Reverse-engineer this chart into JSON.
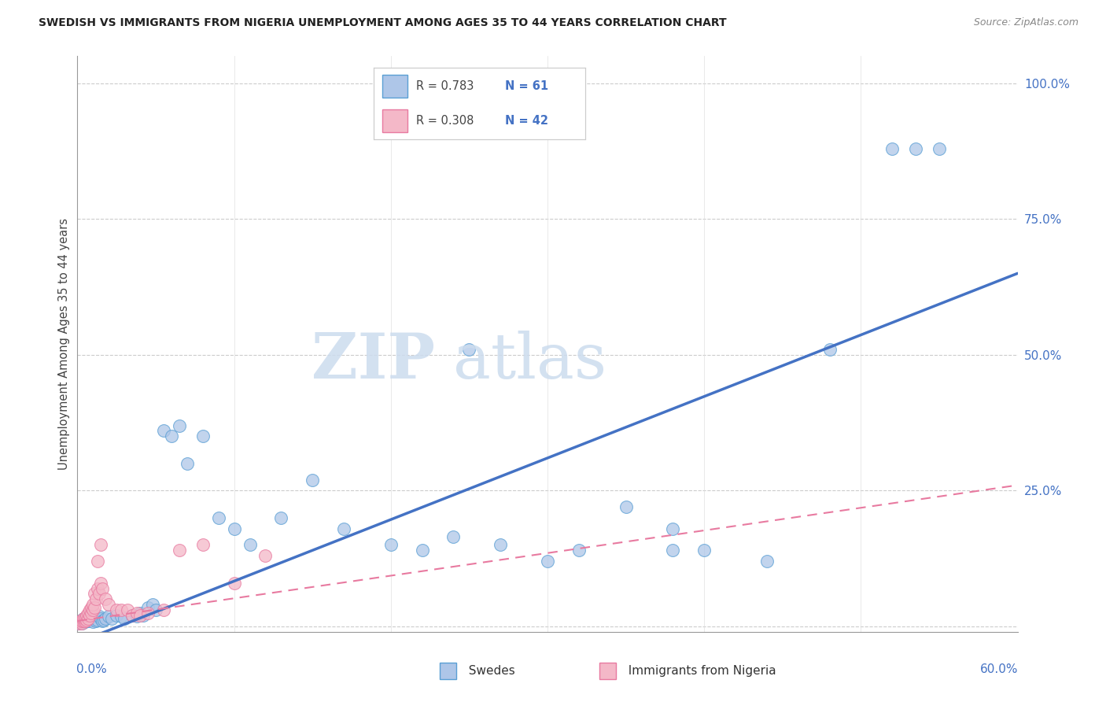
{
  "title": "SWEDISH VS IMMIGRANTS FROM NIGERIA UNEMPLOYMENT AMONG AGES 35 TO 44 YEARS CORRELATION CHART",
  "source": "Source: ZipAtlas.com",
  "ylabel": "Unemployment Among Ages 35 to 44 years",
  "legend_label_blue": "Swedes",
  "legend_label_pink": "Immigrants from Nigeria",
  "blue_fill": "#aec6e8",
  "pink_fill": "#f4b8c8",
  "blue_edge": "#5a9fd4",
  "pink_edge": "#e87aa0",
  "blue_line": "#4472c4",
  "pink_line": "#e87aa0",
  "grid_color": "#cccccc",
  "axis_color": "#999999",
  "tick_label_color": "#4472c4",
  "xlim": [
    0.0,
    0.6
  ],
  "ylim": [
    -0.01,
    1.05
  ],
  "yticks": [
    0.0,
    0.25,
    0.5,
    0.75,
    1.0
  ],
  "ytick_labels": [
    "",
    "25.0%",
    "50.0%",
    "75.0%",
    "100.0%"
  ],
  "blue_x": [
    0.001,
    0.002,
    0.002,
    0.003,
    0.003,
    0.004,
    0.004,
    0.005,
    0.005,
    0.006,
    0.007,
    0.008,
    0.009,
    0.01,
    0.011,
    0.012,
    0.013,
    0.014,
    0.015,
    0.016,
    0.017,
    0.018,
    0.02,
    0.022,
    0.025,
    0.028,
    0.03,
    0.035,
    0.038,
    0.04,
    0.042,
    0.045,
    0.048,
    0.05,
    0.055,
    0.06,
    0.065,
    0.07,
    0.08,
    0.09,
    0.1,
    0.11,
    0.13,
    0.15,
    0.17,
    0.2,
    0.22,
    0.24,
    0.25,
    0.27,
    0.3,
    0.32,
    0.35,
    0.38,
    0.4,
    0.44,
    0.48,
    0.52,
    0.535,
    0.55,
    0.38
  ],
  "blue_y": [
    0.005,
    0.008,
    0.01,
    0.005,
    0.012,
    0.008,
    0.015,
    0.01,
    0.008,
    0.012,
    0.01,
    0.015,
    0.012,
    0.008,
    0.015,
    0.01,
    0.012,
    0.018,
    0.015,
    0.01,
    0.012,
    0.015,
    0.018,
    0.015,
    0.02,
    0.018,
    0.015,
    0.02,
    0.018,
    0.025,
    0.02,
    0.035,
    0.04,
    0.03,
    0.36,
    0.35,
    0.37,
    0.3,
    0.35,
    0.2,
    0.18,
    0.15,
    0.2,
    0.27,
    0.18,
    0.15,
    0.14,
    0.165,
    0.51,
    0.15,
    0.12,
    0.14,
    0.22,
    0.18,
    0.14,
    0.12,
    0.51,
    0.88,
    0.88,
    0.88,
    0.14
  ],
  "pink_x": [
    0.001,
    0.002,
    0.002,
    0.003,
    0.003,
    0.004,
    0.004,
    0.005,
    0.005,
    0.006,
    0.006,
    0.007,
    0.007,
    0.008,
    0.008,
    0.009,
    0.009,
    0.01,
    0.01,
    0.011,
    0.011,
    0.012,
    0.013,
    0.014,
    0.015,
    0.016,
    0.018,
    0.02,
    0.025,
    0.028,
    0.032,
    0.035,
    0.038,
    0.04,
    0.045,
    0.055,
    0.065,
    0.08,
    0.1,
    0.12,
    0.013,
    0.015
  ],
  "pink_y": [
    0.005,
    0.008,
    0.01,
    0.005,
    0.01,
    0.01,
    0.015,
    0.01,
    0.015,
    0.012,
    0.02,
    0.015,
    0.025,
    0.02,
    0.03,
    0.025,
    0.035,
    0.03,
    0.04,
    0.035,
    0.06,
    0.05,
    0.07,
    0.06,
    0.08,
    0.07,
    0.05,
    0.04,
    0.03,
    0.03,
    0.03,
    0.02,
    0.025,
    0.02,
    0.025,
    0.03,
    0.14,
    0.15,
    0.08,
    0.13,
    0.12,
    0.15
  ],
  "blue_trend_x": [
    0.0,
    0.6
  ],
  "blue_trend_y": [
    -0.03,
    0.65
  ],
  "pink_trend_x": [
    0.0,
    0.6
  ],
  "pink_trend_y": [
    0.01,
    0.26
  ]
}
